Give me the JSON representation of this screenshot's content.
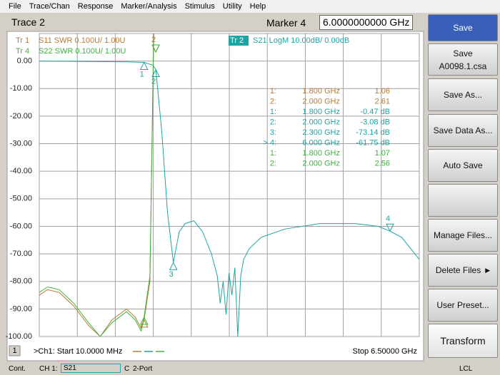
{
  "menu": [
    "File",
    "Trace/Chan",
    "Response",
    "Marker/Analysis",
    "Stimulus",
    "Utility",
    "Help"
  ],
  "toolbar": {
    "active_trace": "Trace 2",
    "marker_label": "Marker 4",
    "marker_value": "6.0000000000 GHz"
  },
  "softkeys": {
    "save": "Save",
    "save_file": "Save",
    "save_file_name": "A0098.1.csa",
    "save_as": "Save As...",
    "save_data_as": "Save Data As...",
    "auto_save": "Auto Save",
    "manage_files": "Manage Files...",
    "delete_files": "Delete Files",
    "user_preset": "User Preset...",
    "transform": "Transform"
  },
  "chart": {
    "type": "line",
    "xlim": [
      0.01,
      6.5
    ],
    "ylim": [
      -100,
      10
    ],
    "y2lim": [
      1.0,
      2.1
    ],
    "yticks": [
      {
        "value": 0,
        "label": "0.00"
      },
      {
        "value": -10,
        "label": "-10.00"
      },
      {
        "value": -20,
        "label": "-20.00"
      },
      {
        "value": -30,
        "label": "-30.00"
      },
      {
        "value": -40,
        "label": "-40.00"
      },
      {
        "value": -50,
        "label": "-50.00"
      },
      {
        "value": -60,
        "label": "-60.00"
      },
      {
        "value": -70,
        "label": "-70.00"
      },
      {
        "value": -80,
        "label": "-80.00"
      },
      {
        "value": -90,
        "label": "-90.00"
      },
      {
        "value": -100,
        "label": "-100.00"
      }
    ],
    "channel_number": "1",
    "start": ">Ch1: Start  10.0000 MHz",
    "stop": "Stop  6.50000 GHz",
    "traces": [
      {
        "id": "Tr 1",
        "label": "S11 SWR 0.100U/  1.00U",
        "color": "#b87a30",
        "axis": "y2",
        "x": [
          0.01,
          0.15,
          0.35,
          0.6,
          0.85,
          1.05,
          1.25,
          1.5,
          1.65,
          1.75,
          1.8,
          1.9,
          2.0
        ],
        "values": [
          1.15,
          1.17,
          1.16,
          1.11,
          1.04,
          1.0,
          1.06,
          1.1,
          1.07,
          1.03,
          1.06,
          1.2,
          2.61
        ],
        "markers": [
          {
            "id": "1:",
            "x": {
              "value": 1.8,
              "label": "1.800 GHz"
            },
            "y": {
              "value": 1.06,
              "label": "1.06"
            }
          },
          {
            "id": "2:",
            "tag": "2",
            "x": {
              "value": 2.0,
              "label": "2.000 GHz"
            },
            "y": {
              "value": 2.61,
              "label": "2.61"
            }
          }
        ]
      },
      {
        "id": "Tr  2",
        "label": "S21 LogM 10.00dB/  0.00dB",
        "color": "#1fa3a3",
        "x": [
          0.01,
          0.5,
          1.0,
          1.5,
          1.8,
          1.95,
          2.0,
          2.1,
          2.2,
          2.3,
          2.4,
          2.5,
          2.65,
          2.8,
          2.95,
          3.05,
          3.1,
          3.15,
          3.2,
          3.25,
          3.3,
          3.35,
          3.4,
          3.45,
          3.5,
          3.6,
          3.8,
          4.2,
          4.8,
          5.4,
          5.8,
          6.0,
          6.2,
          6.35,
          6.5
        ],
        "values": [
          -0.05,
          -0.1,
          -0.2,
          -0.3,
          -0.47,
          -1.5,
          -3.08,
          -25,
          -55,
          -73.14,
          -62,
          -59,
          -58,
          -62,
          -70,
          -78,
          -88,
          -80,
          -92,
          -77,
          -85,
          -75,
          -100,
          -78,
          -72,
          -68,
          -64,
          -61,
          -59,
          -59,
          -60,
          -61.75,
          -64,
          -68,
          -72
        ],
        "markers": [
          {
            "id": "1:",
            "tag": "1",
            "x": {
              "value": 1.8,
              "label": "1.800 GHz"
            },
            "y": {
              "value": -0.47,
              "label": "-0.47 dB"
            }
          },
          {
            "id": "2:",
            "tag": "2",
            "x": {
              "value": 2.0,
              "label": "2.000 GHz"
            },
            "y": {
              "value": -3.08,
              "label": "-3.08 dB"
            }
          },
          {
            "id": "3:",
            "tag": "3",
            "x": {
              "value": 2.3,
              "label": "2.300 GHz"
            },
            "y": {
              "value": -73.14,
              "label": "-73.14 dB"
            }
          },
          {
            "id": "> 4:",
            "tag": "4",
            "x": {
              "value": 6.0,
              "label": "6.000 GHz"
            },
            "y": {
              "value": -61.75,
              "label": "-61.75 dB"
            }
          }
        ]
      },
      {
        "id": "Tr 4",
        "label": "S22 SWR 0.100U/  1.00U",
        "color": "#3cb43c",
        "axis": "y2",
        "x": [
          0.01,
          0.15,
          0.35,
          0.6,
          0.85,
          1.05,
          1.25,
          1.5,
          1.65,
          1.75,
          1.8,
          1.9,
          2.0
        ],
        "values": [
          1.16,
          1.18,
          1.17,
          1.12,
          1.05,
          1.0,
          1.05,
          1.09,
          1.06,
          1.02,
          1.07,
          1.22,
          2.56
        ],
        "markers": [
          {
            "id": "1:",
            "x": {
              "value": 1.8,
              "label": "1.800 GHz"
            },
            "y": {
              "value": 1.07,
              "label": "1.07"
            }
          },
          {
            "id": "2:",
            "x": {
              "value": 2.0,
              "label": "2.000 GHz"
            },
            "y": {
              "value": 2.56,
              "label": "2.56"
            }
          }
        ]
      }
    ]
  },
  "status_bar": {
    "mode": "Cont.",
    "channel": "CH 1:",
    "measurement": "S21",
    "correction": "C",
    "ports": "2-Port",
    "remote": "LCL"
  }
}
